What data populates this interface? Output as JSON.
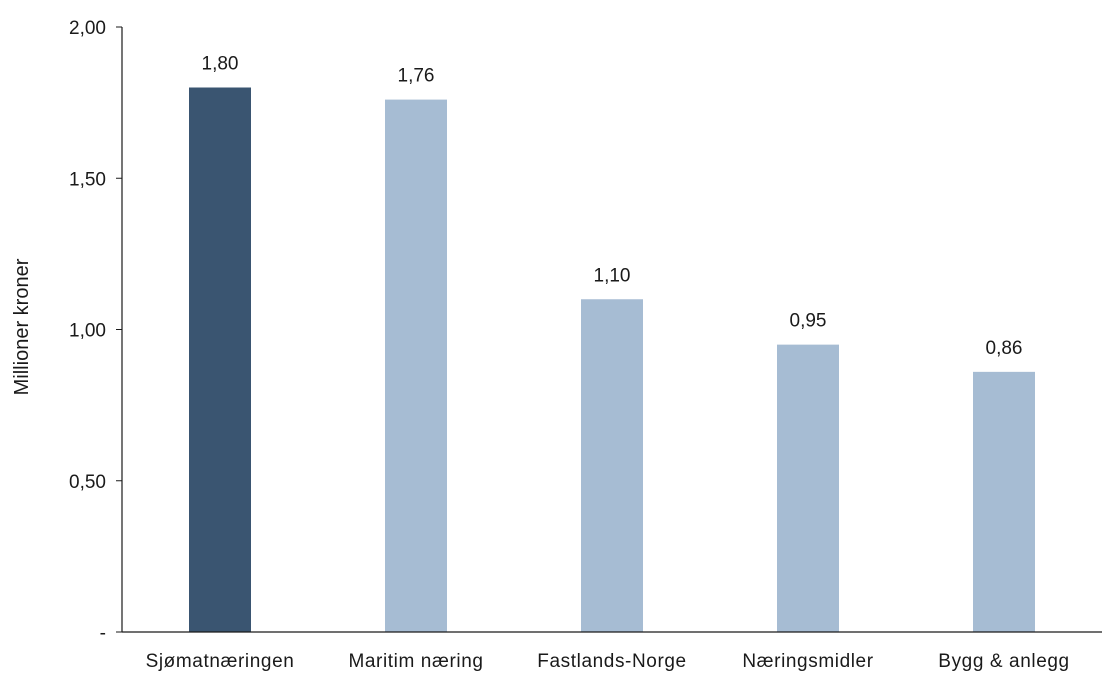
{
  "chart_data": {
    "type": "bar",
    "title": "",
    "xlabel": "",
    "ylabel": "Millioner kroner",
    "categories": [
      "Sjømatnæringen",
      "Maritim næring",
      "Fastlands-Norge",
      "Næringsmidler",
      "Bygg & anlegg"
    ],
    "values": [
      1.8,
      1.76,
      1.1,
      0.95,
      0.86
    ],
    "data_labels": [
      "1,80",
      "1,76",
      "1,10",
      "0,95",
      "0,86"
    ],
    "ylim": [
      0,
      2.0
    ],
    "yticks": [
      {
        "value": 0,
        "label": "-"
      },
      {
        "value": 0.5,
        "label": "0,50"
      },
      {
        "value": 1.0,
        "label": "1,00"
      },
      {
        "value": 1.5,
        "label": "1,50"
      },
      {
        "value": 2.0,
        "label": "2,00"
      }
    ],
    "grid": false,
    "legend": "none",
    "colors": {
      "highlight": "#3a5571",
      "default": "#a6bcd3",
      "axis": "#1a1a1a"
    },
    "highlight_index": 0
  }
}
